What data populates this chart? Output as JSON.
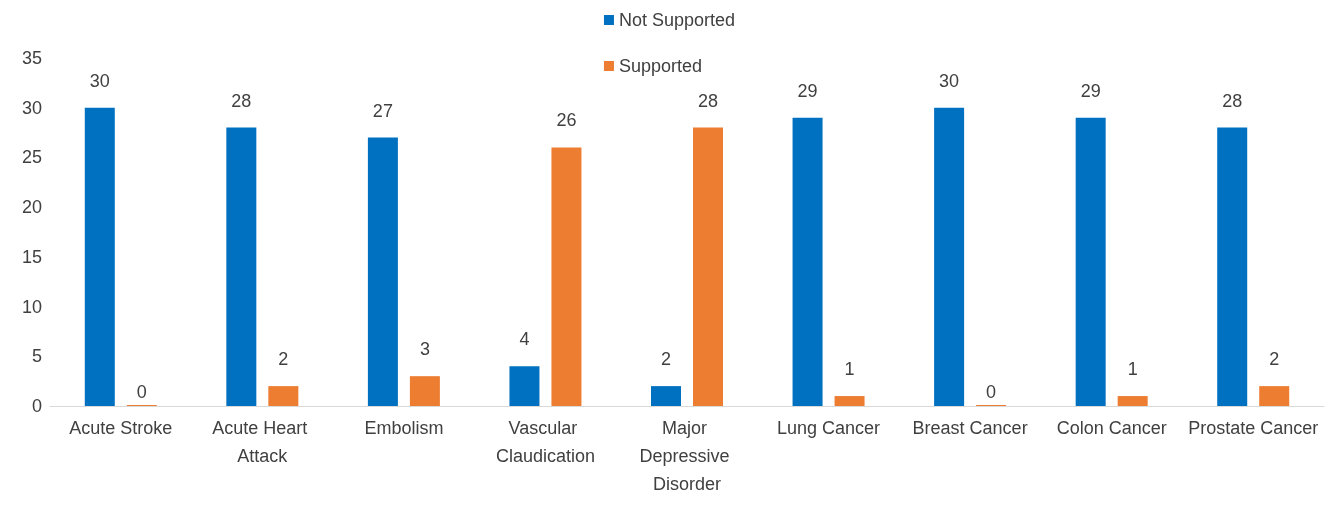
{
  "chart_data": {
    "type": "bar",
    "categories": [
      "Acute Stroke",
      "Acute Heart Attack",
      "Embolism",
      "Vascular Claudication",
      "Major Depressive Disorder",
      "Lung Cancer",
      "Breast Cancer",
      "Colon Cancer",
      "Prostate Cancer"
    ],
    "series": [
      {
        "name": "Not Supported",
        "color": "#0070c0",
        "values": [
          30,
          28,
          27,
          4,
          2,
          29,
          30,
          29,
          28
        ]
      },
      {
        "name": "Supported",
        "color": "#ed7d31",
        "values": [
          0,
          2,
          3,
          26,
          28,
          1,
          0,
          1,
          2
        ]
      }
    ],
    "ylim": [
      0,
      35
    ],
    "yticks": [
      0,
      5,
      10,
      15,
      20,
      25,
      30,
      35
    ],
    "grid": false,
    "legend": "top",
    "data_labels": true
  }
}
